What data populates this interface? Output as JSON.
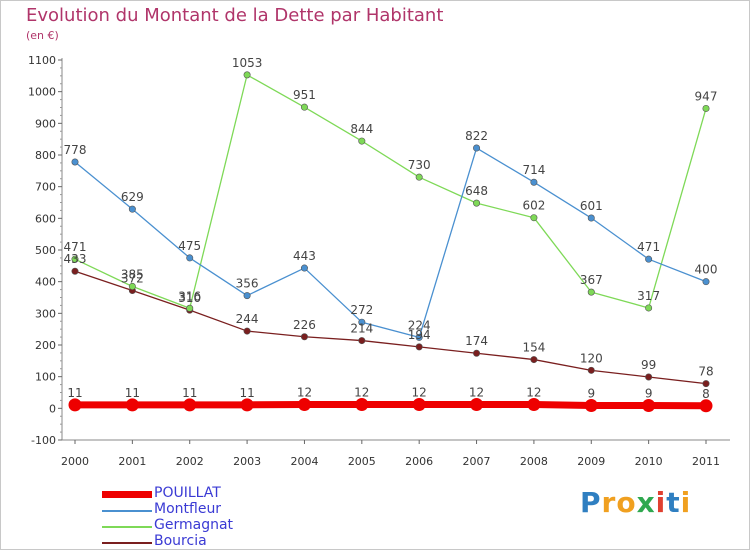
{
  "title": "Evolution du Montant de la Dette par Habitant",
  "subtitle": "(en €)",
  "logo": {
    "text": "Proxiti",
    "colors": [
      "#2f7fc1",
      "#f0a020",
      "#f0a020",
      "#2fa84f",
      "#e04030",
      "#2f7fc1",
      "#f0a020"
    ]
  },
  "chart_data": {
    "type": "line",
    "x": [
      "2000",
      "2001",
      "2002",
      "2003",
      "2004",
      "2005",
      "2006",
      "2007",
      "2008",
      "2009",
      "2010",
      "2011"
    ],
    "ylim": [
      -100,
      1100
    ],
    "yticks": [
      -100,
      0,
      100,
      200,
      300,
      400,
      500,
      600,
      700,
      800,
      900,
      1000,
      1100
    ],
    "grid": false,
    "legend": "bottom-left",
    "series": [
      {
        "name": "POUILLAT",
        "color": "#ee0000",
        "values": [
          11,
          11,
          11,
          11,
          12,
          12,
          12,
          12,
          12,
          9,
          9,
          8
        ]
      },
      {
        "name": "Montfleur",
        "color": "#4a90d0",
        "values": [
          778,
          629,
          475,
          356,
          443,
          272,
          224,
          822,
          714,
          601,
          471,
          400
        ]
      },
      {
        "name": "Germagnat",
        "color": "#7ed957",
        "values": [
          471,
          385,
          316,
          1053,
          951,
          844,
          730,
          648,
          602,
          367,
          317,
          947
        ]
      },
      {
        "name": "Bourcia",
        "color": "#7a1f1f",
        "values": [
          433,
          372,
          310,
          244,
          226,
          214,
          194,
          174,
          154,
          120,
          99,
          78
        ]
      }
    ]
  }
}
